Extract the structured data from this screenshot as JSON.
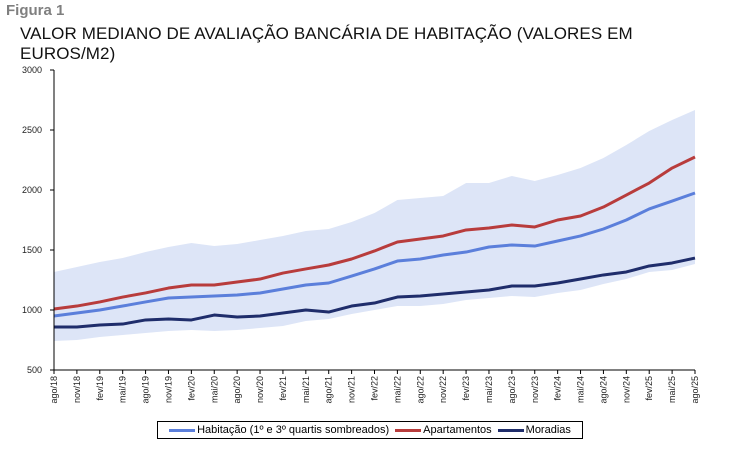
{
  "figure_label": "Figura 1",
  "chart_data": {
    "type": "line",
    "title": "VALOR MEDIANO DE AVALIAÇÃO BANCÁRIA DE HABITAÇÃO (VALORES EM EUROS/M2)",
    "xlabel": "",
    "ylabel": "",
    "ylim": [
      500,
      3000
    ],
    "yticks": [
      "500",
      "1000",
      "1500",
      "2000",
      "2500",
      "3000"
    ],
    "categories": [
      "ago/18",
      "nov/18",
      "fev/19",
      "mai/19",
      "ago/19",
      "nov/19",
      "fev/20",
      "mai/20",
      "ago/20",
      "nov/20",
      "fev/21",
      "mai/21",
      "ago/21",
      "nov/21",
      "fev/22",
      "mai/22",
      "ago/22",
      "nov/22",
      "fev/23",
      "mai/23",
      "ago/23",
      "nov/23",
      "fev/24",
      "mai/24",
      "ago/24",
      "nov/24",
      "fev/25",
      "mai/25",
      "ago/25"
    ],
    "band": {
      "name": "1º e 3º quartis (Habitação)",
      "color": "#dde5f7",
      "q1": [
        742,
        750,
        775,
        792,
        808,
        825,
        833,
        825,
        833,
        850,
        867,
        908,
        925,
        967,
        1000,
        1033,
        1033,
        1050,
        1083,
        1100,
        1117,
        1108,
        1142,
        1167,
        1217,
        1258,
        1317,
        1333,
        1383
      ],
      "q3": [
        1317,
        1358,
        1400,
        1433,
        1483,
        1525,
        1558,
        1533,
        1550,
        1583,
        1617,
        1658,
        1675,
        1733,
        1808,
        1917,
        1933,
        1950,
        2058,
        2058,
        2117,
        2075,
        2125,
        2183,
        2267,
        2375,
        2492,
        2583,
        2667
      ]
    },
    "series": [
      {
        "name": "Habitação (1º e 3º quartis sombreados)",
        "color": "#5b7fdb",
        "values": [
          950,
          975,
          1000,
          1033,
          1067,
          1100,
          1108,
          1117,
          1125,
          1142,
          1175,
          1208,
          1225,
          1283,
          1342,
          1408,
          1425,
          1458,
          1483,
          1525,
          1542,
          1533,
          1575,
          1617,
          1675,
          1750,
          1842,
          1908,
          1975
        ]
      },
      {
        "name": "Apartamentos",
        "color": "#b83c3c",
        "values": [
          1008,
          1033,
          1067,
          1108,
          1142,
          1183,
          1208,
          1208,
          1233,
          1258,
          1308,
          1342,
          1375,
          1425,
          1492,
          1567,
          1592,
          1617,
          1667,
          1683,
          1708,
          1692,
          1750,
          1783,
          1858,
          1958,
          2058,
          2183,
          2275
        ]
      },
      {
        "name": "Moradias",
        "color": "#1f2d6b",
        "values": [
          858,
          858,
          875,
          883,
          917,
          925,
          917,
          958,
          942,
          950,
          975,
          1000,
          983,
          1033,
          1058,
          1108,
          1117,
          1133,
          1150,
          1167,
          1200,
          1200,
          1225,
          1258,
          1292,
          1317,
          1367,
          1392,
          1433
        ]
      }
    ],
    "grid": false,
    "legend_position": "bottom"
  }
}
